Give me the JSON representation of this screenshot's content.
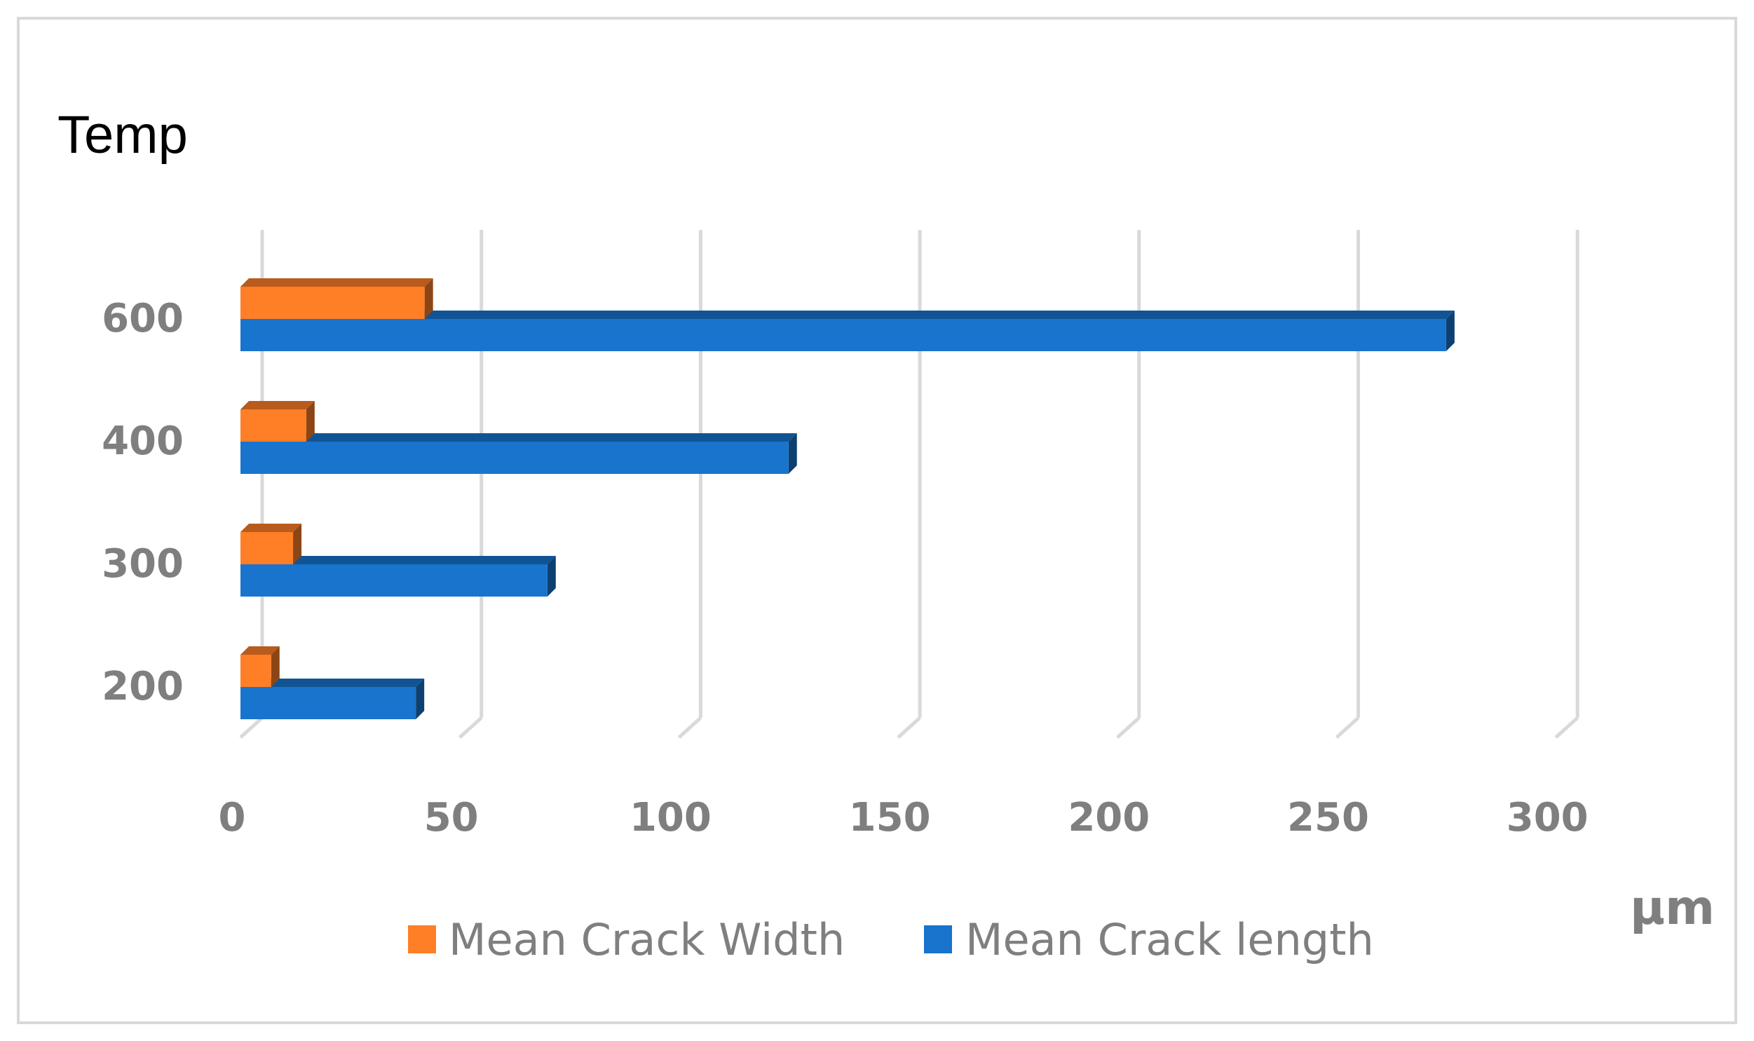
{
  "chart_data": {
    "type": "bar",
    "orientation": "horizontal",
    "three_d": true,
    "categories": [
      "200",
      "300",
      "400",
      "600"
    ],
    "series": [
      {
        "name": "Mean Crack Width",
        "color": "#ff7f27",
        "values": [
          7,
          12,
          15,
          42
        ]
      },
      {
        "name": "Mean Crack length",
        "color": "#1874cd",
        "values": [
          40,
          70,
          125,
          275
        ]
      }
    ],
    "ylabel": "Temp",
    "xlabel": "µm",
    "xlim": [
      0,
      300
    ],
    "xticks": [
      "0",
      "50",
      "100",
      "150",
      "200",
      "250",
      "300"
    ],
    "grid": true,
    "legend_position": "bottom"
  }
}
